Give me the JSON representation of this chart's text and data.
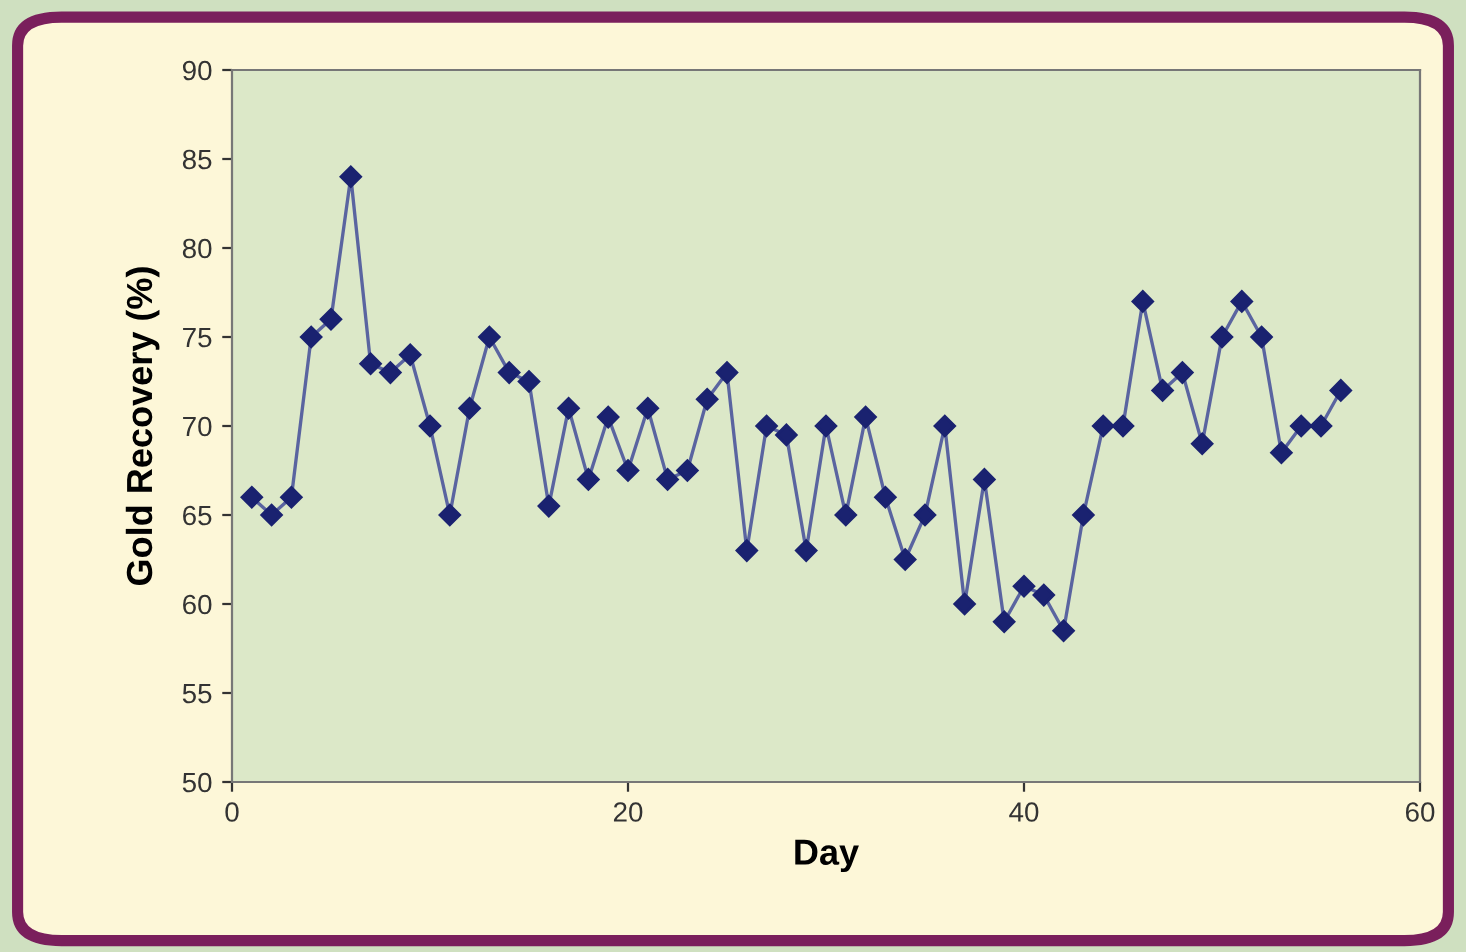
{
  "chart_data": {
    "type": "line",
    "xlabel": "Day",
    "ylabel": "Gold Recovery (%)",
    "x": [
      1,
      2,
      3,
      4,
      5,
      6,
      7,
      8,
      9,
      10,
      11,
      12,
      13,
      14,
      15,
      16,
      17,
      18,
      19,
      20,
      21,
      22,
      23,
      24,
      25,
      26,
      27,
      28,
      29,
      30,
      31,
      32,
      33,
      34,
      35,
      36,
      37,
      38,
      39,
      40,
      41,
      42,
      43,
      44,
      45,
      46,
      47,
      48,
      49,
      50,
      51,
      52,
      53,
      54,
      55,
      56
    ],
    "series": [
      {
        "color": "#1a2270",
        "values": [
          66,
          65,
          66,
          75,
          76,
          84,
          73.5,
          73,
          74,
          70,
          65,
          71,
          75,
          73,
          72.5,
          65.5,
          71,
          67,
          70.5,
          67.5,
          71,
          67,
          67.5,
          71.5,
          73,
          63,
          70,
          69.5,
          63,
          70,
          65,
          70.5,
          66,
          62.5,
          65,
          70,
          60,
          67,
          59,
          61,
          60.5,
          58.5,
          65,
          70,
          70,
          77,
          72,
          73,
          69,
          75,
          77,
          75,
          68.5,
          70,
          70,
          72
        ]
      }
    ],
    "xlim": [
      0,
      60
    ],
    "xticks": [
      0,
      20,
      40,
      60
    ],
    "ylim": [
      50,
      90
    ],
    "yticks": [
      50,
      55,
      60,
      65,
      70,
      75,
      80,
      85,
      90
    ],
    "marker": "diamond",
    "line_style": "solid",
    "grid": false
  }
}
